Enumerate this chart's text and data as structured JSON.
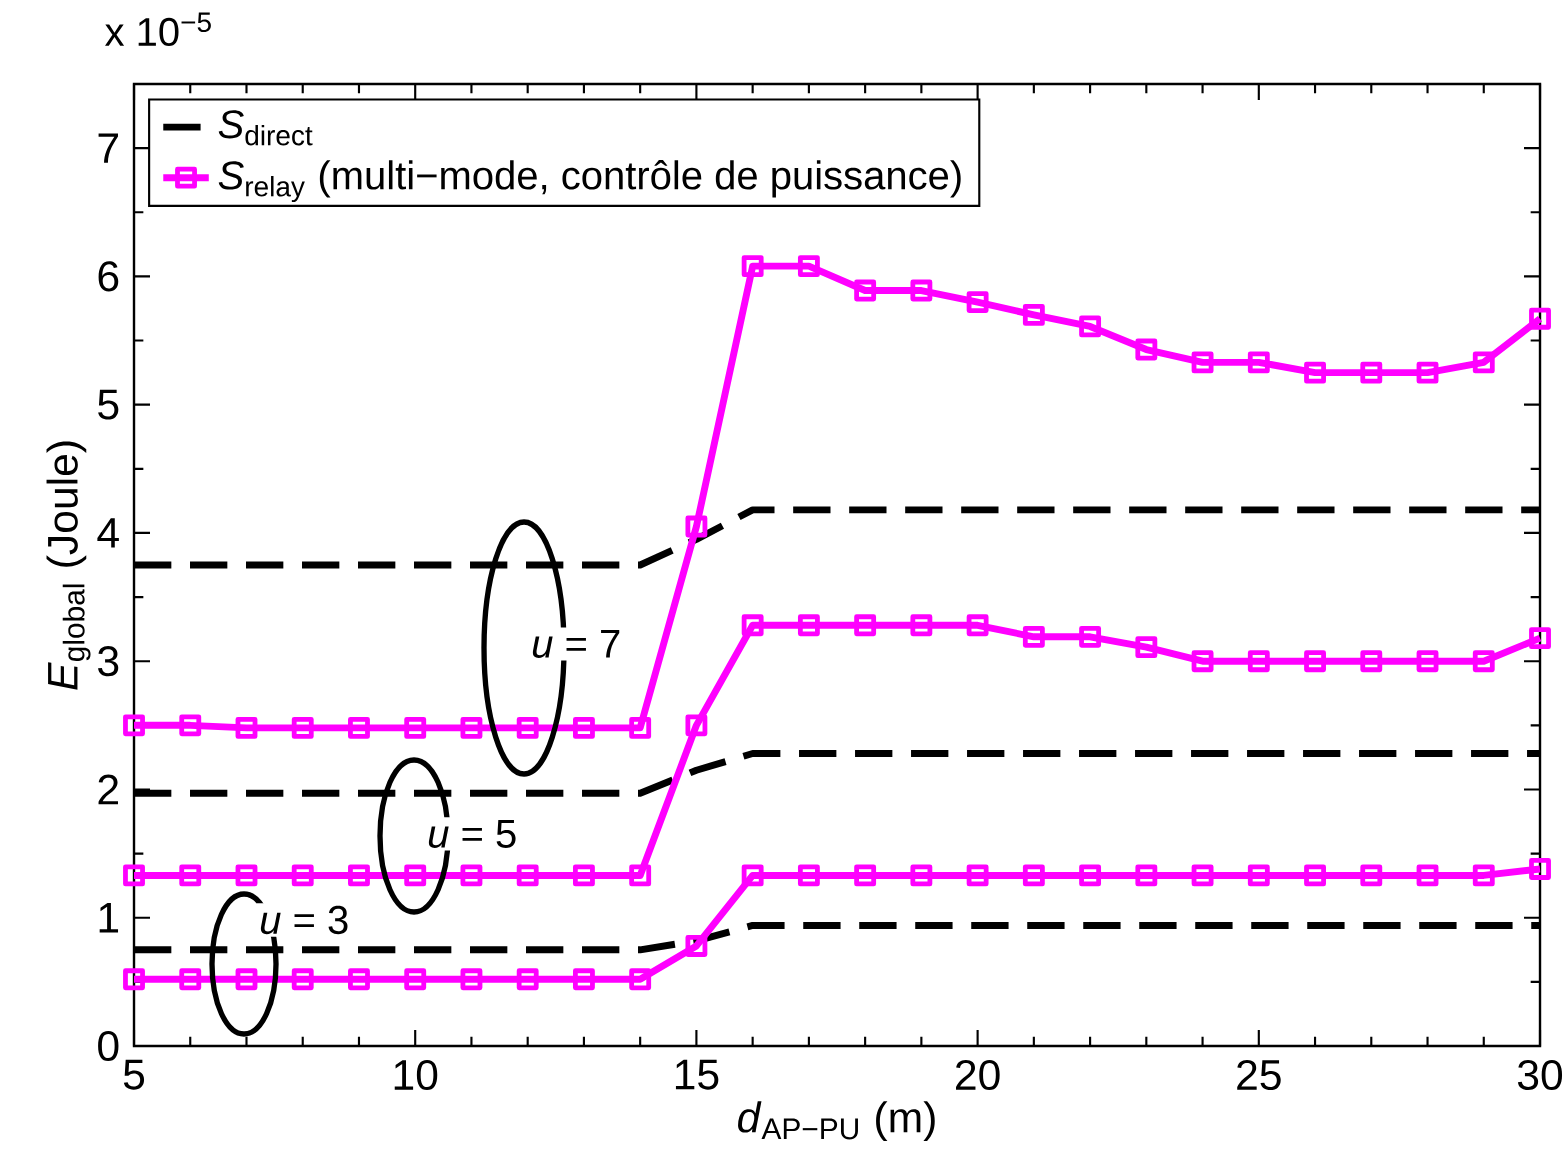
{
  "chart_data": {
    "type": "line",
    "xlabel": "*d*$_{AP−PU}$ (m)",
    "ylabel": "*E*$_{global}$ (Joule)",
    "x": [
      5,
      6,
      7,
      8,
      9,
      10,
      11,
      12,
      13,
      14,
      15,
      16,
      17,
      18,
      19,
      20,
      21,
      22,
      23,
      24,
      25,
      26,
      27,
      28,
      29,
      30
    ],
    "series": [
      {
        "name": "*S*$_{direct}$",
        "color": "#000000",
        "marker": "none",
        "line_style": "dashed",
        "values": [
          3.75,
          3.75,
          3.75,
          3.75,
          3.75,
          3.75,
          3.75,
          3.75,
          3.75,
          3.75,
          3.95,
          4.18,
          4.18,
          4.18,
          4.18,
          4.18,
          4.18,
          4.18,
          4.18,
          4.18,
          4.18,
          4.18,
          4.18,
          4.18,
          4.18,
          4.18
        ]
      },
      {
        "name": "*S*$_{relay}$ (multi−mode, contrôle de puissance)",
        "color": "#ff00ff",
        "marker": "square",
        "line_style": "solid",
        "values": [
          2.5,
          2.5,
          2.48,
          2.48,
          2.48,
          2.48,
          2.48,
          2.48,
          2.48,
          2.48,
          4.05,
          6.08,
          6.08,
          5.89,
          5.89,
          5.8,
          5.7,
          5.61,
          5.43,
          5.33,
          5.33,
          5.25,
          5.25,
          5.25,
          5.33,
          5.67
        ]
      },
      {
        "color": "#000000",
        "marker": "none",
        "line_style": "dashed",
        "values": [
          1.97,
          1.97,
          1.97,
          1.97,
          1.97,
          1.97,
          1.97,
          1.97,
          1.97,
          1.97,
          2.15,
          2.28,
          2.28,
          2.28,
          2.28,
          2.28,
          2.28,
          2.28,
          2.28,
          2.28,
          2.28,
          2.28,
          2.28,
          2.28,
          2.28,
          2.28
        ]
      },
      {
        "color": "#ff00ff",
        "marker": "square",
        "line_style": "solid",
        "values": [
          1.33,
          1.33,
          1.33,
          1.33,
          1.33,
          1.33,
          1.33,
          1.33,
          1.33,
          1.33,
          2.5,
          3.28,
          3.28,
          3.28,
          3.28,
          3.28,
          3.19,
          3.19,
          3.11,
          3.0,
          3.0,
          3.0,
          3.0,
          3.0,
          3.0,
          3.18
        ]
      },
      {
        "color": "#000000",
        "marker": "none",
        "line_style": "dashed",
        "values": [
          0.75,
          0.75,
          0.75,
          0.75,
          0.75,
          0.75,
          0.75,
          0.75,
          0.75,
          0.75,
          0.82,
          0.94,
          0.94,
          0.94,
          0.94,
          0.94,
          0.94,
          0.94,
          0.94,
          0.94,
          0.94,
          0.94,
          0.94,
          0.94,
          0.94,
          0.94
        ]
      },
      {
        "color": "#ff00ff",
        "marker": "square",
        "line_style": "solid",
        "values": [
          0.52,
          0.52,
          0.52,
          0.52,
          0.52,
          0.52,
          0.52,
          0.52,
          0.52,
          0.52,
          0.78,
          1.33,
          1.33,
          1.33,
          1.33,
          1.33,
          1.33,
          1.33,
          1.33,
          1.33,
          1.33,
          1.33,
          1.33,
          1.33,
          1.33,
          1.38
        ]
      }
    ],
    "xlim": [
      5,
      30
    ],
    "ylim": [
      0,
      7.5
    ],
    "xticks": [
      5,
      10,
      15,
      20,
      25,
      30
    ],
    "yticks": [
      0,
      1,
      2,
      3,
      4,
      5,
      6,
      7
    ],
    "grid": false,
    "legend": "top left",
    "annotations": [
      "x 10$^{−5}$",
      "*u* = 7",
      "*u* = 5",
      "*u* = 3"
    ]
  }
}
